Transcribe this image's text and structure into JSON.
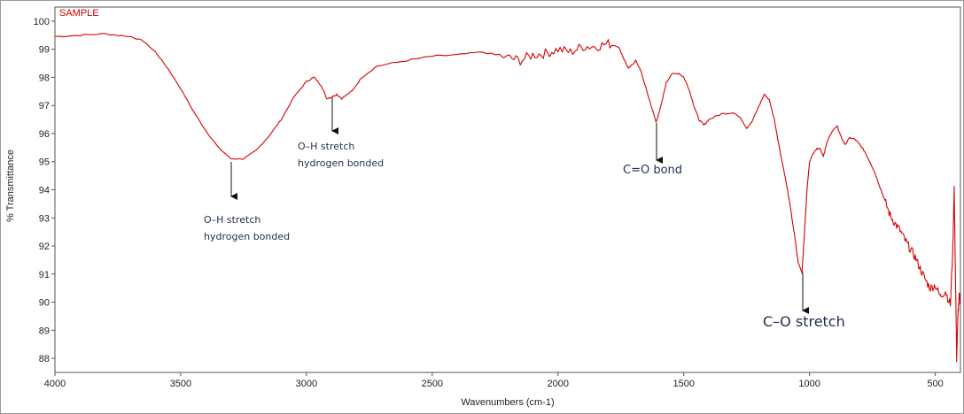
{
  "chart_data": {
    "type": "line",
    "title": "SAMPLE",
    "xlabel": "Wavenumbers (cm-1)",
    "ylabel": "% Transmittance",
    "xlim": [
      4000,
      400
    ],
    "ylim": [
      87.5,
      100.5
    ],
    "x_ticks": [
      4000,
      3500,
      3000,
      2500,
      2000,
      1500,
      1000,
      500
    ],
    "y_ticks": [
      88,
      89,
      90,
      91,
      92,
      93,
      94,
      95,
      96,
      97,
      98,
      99,
      100
    ],
    "series_color": "#d40000",
    "series": [
      {
        "name": "SAMPLE",
        "points": [
          [
            4000,
            99.45
          ],
          [
            3900,
            99.5
          ],
          [
            3800,
            99.55
          ],
          [
            3700,
            99.45
          ],
          [
            3650,
            99.3
          ],
          [
            3600,
            98.9
          ],
          [
            3550,
            98.3
          ],
          [
            3500,
            97.6
          ],
          [
            3450,
            96.8
          ],
          [
            3400,
            96.1
          ],
          [
            3350,
            95.5
          ],
          [
            3300,
            95.1
          ],
          [
            3250,
            95.1
          ],
          [
            3200,
            95.4
          ],
          [
            3150,
            95.9
          ],
          [
            3100,
            96.5
          ],
          [
            3050,
            97.3
          ],
          [
            3000,
            97.85
          ],
          [
            2970,
            98.0
          ],
          [
            2940,
            97.7
          ],
          [
            2920,
            97.25
          ],
          [
            2900,
            97.3
          ],
          [
            2880,
            97.4
          ],
          [
            2860,
            97.25
          ],
          [
            2820,
            97.5
          ],
          [
            2780,
            98.0
          ],
          [
            2720,
            98.4
          ],
          [
            2600,
            98.6
          ],
          [
            2500,
            98.75
          ],
          [
            2400,
            98.8
          ],
          [
            2300,
            98.9
          ],
          [
            2200,
            98.7
          ],
          [
            2150,
            98.6
          ],
          [
            2100,
            98.8
          ],
          [
            2050,
            98.85
          ],
          [
            2000,
            99.0
          ],
          [
            1950,
            98.9
          ],
          [
            1900,
            99.1
          ],
          [
            1850,
            99.1
          ],
          [
            1800,
            99.2
          ],
          [
            1760,
            99.1
          ],
          [
            1740,
            98.7
          ],
          [
            1720,
            98.3
          ],
          [
            1700,
            98.5
          ],
          [
            1690,
            98.6
          ],
          [
            1670,
            98.2
          ],
          [
            1650,
            97.6
          ],
          [
            1630,
            97.0
          ],
          [
            1610,
            96.4
          ],
          [
            1590,
            97.0
          ],
          [
            1570,
            97.8
          ],
          [
            1550,
            98.1
          ],
          [
            1520,
            98.15
          ],
          [
            1500,
            98.0
          ],
          [
            1480,
            97.6
          ],
          [
            1460,
            97.0
          ],
          [
            1440,
            96.5
          ],
          [
            1420,
            96.3
          ],
          [
            1400,
            96.5
          ],
          [
            1350,
            96.7
          ],
          [
            1300,
            96.75
          ],
          [
            1270,
            96.5
          ],
          [
            1250,
            96.2
          ],
          [
            1230,
            96.4
          ],
          [
            1200,
            97.0
          ],
          [
            1180,
            97.4
          ],
          [
            1160,
            97.2
          ],
          [
            1140,
            96.5
          ],
          [
            1120,
            95.5
          ],
          [
            1100,
            94.6
          ],
          [
            1080,
            93.6
          ],
          [
            1060,
            92.4
          ],
          [
            1045,
            91.4
          ],
          [
            1030,
            91.05
          ],
          [
            1020,
            92.5
          ],
          [
            1010,
            94.0
          ],
          [
            1000,
            95.0
          ],
          [
            980,
            95.4
          ],
          [
            960,
            95.5
          ],
          [
            945,
            95.2
          ],
          [
            930,
            95.7
          ],
          [
            910,
            96.1
          ],
          [
            890,
            96.25
          ],
          [
            875,
            95.9
          ],
          [
            860,
            95.6
          ],
          [
            840,
            95.85
          ],
          [
            820,
            95.8
          ],
          [
            800,
            95.6
          ],
          [
            780,
            95.35
          ],
          [
            760,
            95.0
          ],
          [
            740,
            94.6
          ],
          [
            720,
            94.1
          ],
          [
            700,
            93.6
          ],
          [
            680,
            93.1
          ],
          [
            660,
            92.8
          ],
          [
            640,
            92.55
          ],
          [
            620,
            92.2
          ],
          [
            600,
            91.9
          ],
          [
            580,
            91.6
          ],
          [
            560,
            91.2
          ],
          [
            540,
            90.8
          ],
          [
            520,
            90.5
          ],
          [
            500,
            90.6
          ],
          [
            480,
            90.2
          ],
          [
            460,
            90.4
          ],
          [
            440,
            89.9
          ],
          [
            430,
            92.0
          ],
          [
            425,
            94.1
          ],
          [
            420,
            91.0
          ],
          [
            415,
            88.0
          ],
          [
            410,
            89.5
          ],
          [
            405,
            90.3
          ],
          [
            400,
            90.0
          ]
        ]
      }
    ],
    "annotations": [
      {
        "line1": "O–H stretch",
        "line2": "hydrogen bonded"
      },
      {
        "line1": "O–H stretch",
        "line2": "hydrogen bonded"
      },
      {
        "line1": "C=O bond"
      },
      {
        "line1": "C–O stretch"
      }
    ]
  }
}
